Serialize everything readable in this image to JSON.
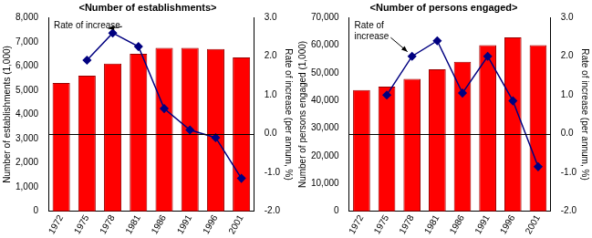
{
  "chart_data": [
    {
      "type": "bar",
      "title": "<Number of establishments>",
      "y_label": "Number of establishments (1,000)",
      "y2_label": "Rate of increase (per annum, %)",
      "annotation": "Rate of increase",
      "categories": [
        "1972",
        "1975",
        "1978",
        "1981",
        "1986",
        "1991",
        "1996",
        "2001"
      ],
      "series": [
        {
          "type": "bar",
          "color": "#ff0000",
          "values": [
            5300,
            5600,
            6100,
            6500,
            6750,
            6750,
            6700,
            6350
          ]
        },
        {
          "type": "line",
          "axis": "y2",
          "color": "#000080",
          "marker": "diamond",
          "values": [
            null,
            1.9,
            2.6,
            2.25,
            0.65,
            0.1,
            -0.1,
            -1.15
          ]
        }
      ],
      "ylim": [
        0,
        8000
      ],
      "yticks": [
        0,
        {
          "value": 1000,
          "label": "1,000"
        },
        {
          "value": 2000,
          "label": "2,000"
        },
        {
          "value": 3000,
          "label": "3,000"
        },
        {
          "value": 4000,
          "label": "4,000"
        },
        {
          "value": 5000,
          "label": "5,000"
        },
        {
          "value": 6000,
          "label": "6,000"
        },
        {
          "value": 7000,
          "label": "7,000"
        },
        {
          "value": 8000,
          "label": "8,000"
        }
      ],
      "y2lim": [
        -2,
        3
      ],
      "y2ticks": [
        {
          "value": -2,
          "label": "-2.0"
        },
        {
          "value": -1,
          "label": "-1.0"
        },
        {
          "value": 0,
          "label": "0.0"
        },
        {
          "value": 1,
          "label": "1.0"
        },
        {
          "value": 2,
          "label": "2.0"
        },
        {
          "value": 3,
          "label": "3.0"
        }
      ],
      "grid": false
    },
    {
      "type": "bar",
      "title": "<Number of persons engaged>",
      "y_label": "Number of persons engaged (1,000)",
      "y2_label": "Rate of increase (per annum, %)",
      "annotation": "Rate of increase",
      "categories": [
        "1972",
        "1975",
        "1978",
        "1981",
        "1986",
        "1991",
        "1996",
        "2001"
      ],
      "series": [
        {
          "type": "bar",
          "color": "#ff0000",
          "values": [
            43800,
            45000,
            47800,
            51300,
            54000,
            60000,
            62800,
            60000
          ]
        },
        {
          "type": "line",
          "axis": "y2",
          "color": "#000080",
          "marker": "diamond",
          "values": [
            null,
            1.0,
            2.0,
            2.4,
            1.05,
            2.0,
            0.85,
            -0.85
          ]
        }
      ],
      "ylim": [
        0,
        70000
      ],
      "yticks": [
        0,
        {
          "value": 10000,
          "label": "10,000"
        },
        {
          "value": 20000,
          "label": "20,000"
        },
        {
          "value": 30000,
          "label": "30,000"
        },
        {
          "value": 40000,
          "label": "40,000"
        },
        {
          "value": 50000,
          "label": "50,000"
        },
        {
          "value": 60000,
          "label": "60,000"
        },
        {
          "value": 70000,
          "label": "70,000"
        }
      ],
      "y2lim": [
        -2,
        3
      ],
      "y2ticks": [
        {
          "value": -2,
          "label": "-2.0"
        },
        {
          "value": -1,
          "label": "-1.0"
        },
        {
          "value": 0,
          "label": "0.0"
        },
        {
          "value": 1,
          "label": "1.0"
        },
        {
          "value": 2,
          "label": "2.0"
        },
        {
          "value": 3,
          "label": "3.0"
        }
      ],
      "grid": false
    }
  ]
}
